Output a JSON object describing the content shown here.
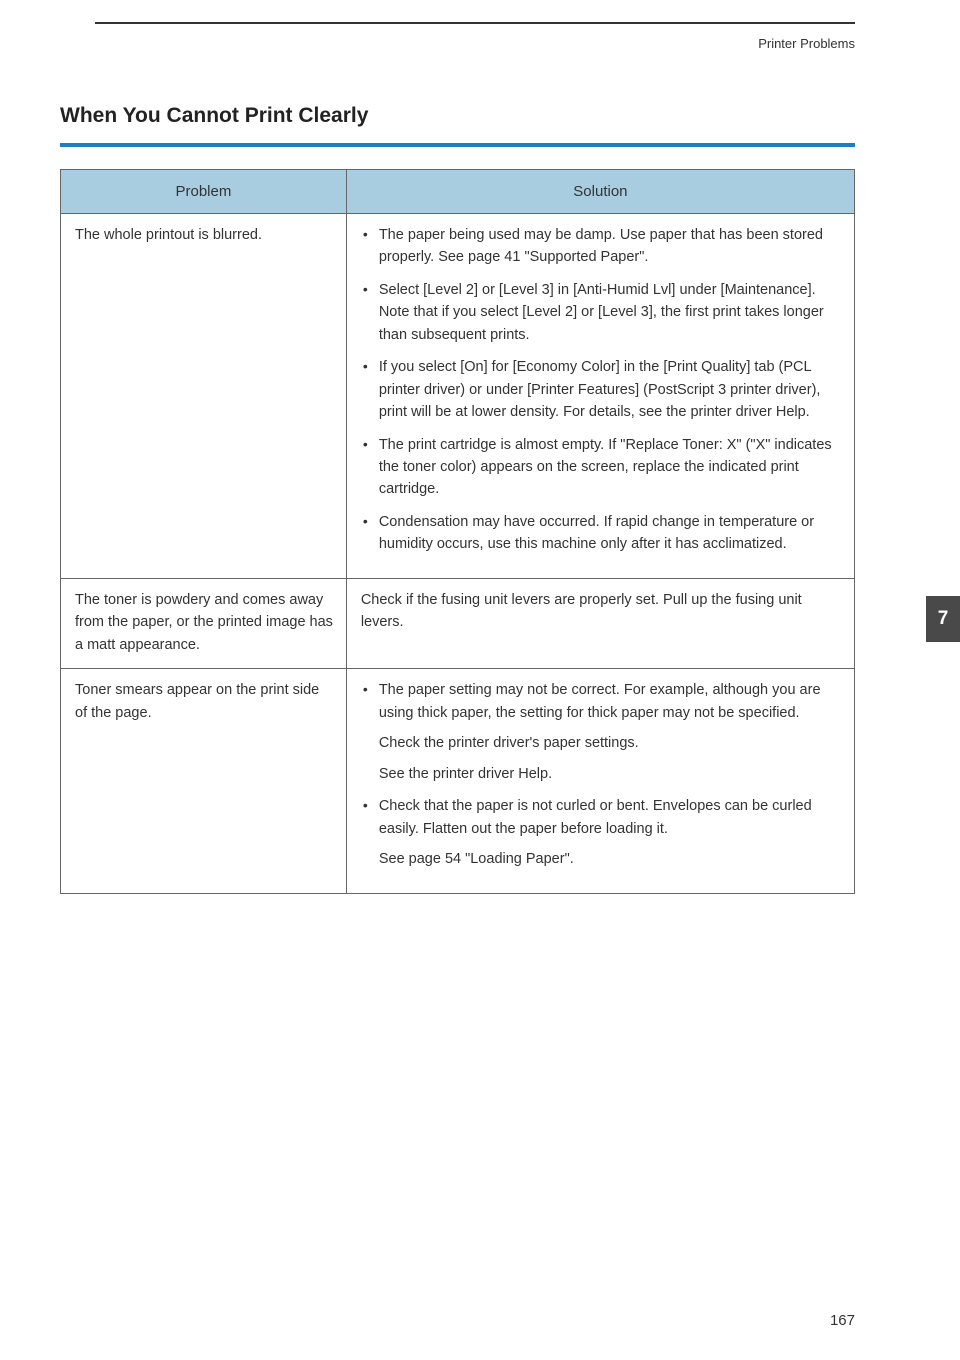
{
  "header": {
    "label": "Printer Problems"
  },
  "section": {
    "title": "When You Cannot Print Clearly"
  },
  "table": {
    "headers": {
      "problem": "Problem",
      "solution": "Solution"
    },
    "rows": [
      {
        "problem": "The whole printout is blurred.",
        "solutions": [
          {
            "text": "The paper being used may be damp. Use paper that has been stored properly. See page 41 \"Supported Paper\"."
          },
          {
            "text": "Select [Level 2] or [Level 3] in [Anti-Humid Lvl] under [Maintenance]. Note that if you select [Level 2] or [Level 3], the first print takes longer than subsequent prints."
          },
          {
            "text": "If you select [On] for [Economy Color] in the [Print Quality] tab (PCL printer driver) or under [Printer Features] (PostScript 3 printer driver), print will be at lower density. For details, see the printer driver Help."
          },
          {
            "text": "The print cartridge is almost empty. If \"Replace Toner: X\" (\"X\" indicates the toner color) appears on the screen, replace the indicated print cartridge."
          },
          {
            "text": "Condensation may have occurred. If rapid change in temperature or humidity occurs, use this machine only after it has acclimatized."
          }
        ]
      },
      {
        "problem": "The toner is powdery and comes away from the paper, or the printed image has a matt appearance.",
        "solution_plain": "Check if the fusing unit levers are properly set. Pull up the fusing unit levers."
      },
      {
        "problem": "Toner smears appear on the print side of the page.",
        "solutions": [
          {
            "text": "The paper setting may not be correct. For example, although you are using thick paper, the setting for thick paper may not be specified.",
            "extra": [
              "Check the printer driver's paper settings.",
              "See the printer driver Help."
            ]
          },
          {
            "text": "Check that the paper is not curled or bent. Envelopes can be curled easily. Flatten out the paper before loading it.",
            "extra": [
              "See page 54 \"Loading Paper\"."
            ]
          }
        ]
      }
    ]
  },
  "sideTab": "7",
  "pageNumber": "167",
  "colors": {
    "accent": "#1a7fc4",
    "tableHeaderBg": "#a9cde0",
    "sideTabBg": "#494949"
  }
}
